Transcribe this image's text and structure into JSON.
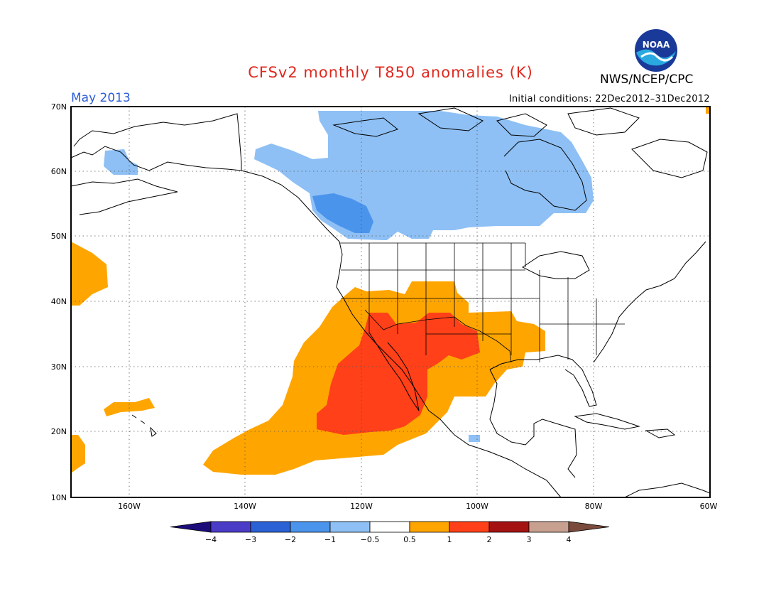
{
  "header": {
    "title": "CFSv2 monthly T850 anomalies (K)",
    "org": "NWS/NCEP/CPC",
    "logo_text": "NOAA",
    "month": "May 2013",
    "initial_conditions": "Initial conditions: 22Dec2012–31Dec2012"
  },
  "axes": {
    "lat_labels": [
      "70N",
      "60N",
      "50N",
      "40N",
      "30N",
      "20N",
      "10N"
    ],
    "lon_labels": [
      "160W",
      "140W",
      "120W",
      "100W",
      "80W",
      "60W"
    ]
  },
  "colorbar": {
    "labels": [
      "−4",
      "−3",
      "−2",
      "−1",
      "−0.5",
      "0.5",
      "1",
      "2",
      "3",
      "4"
    ],
    "colors": [
      "#1c0c7a",
      "#4b3cc8",
      "#2a62d6",
      "#4b94ec",
      "#8ec0f5",
      "#ffffff",
      "#ffa500",
      "#ff4018",
      "#a41212",
      "#c8a090",
      "#7a4a3c"
    ]
  }
}
